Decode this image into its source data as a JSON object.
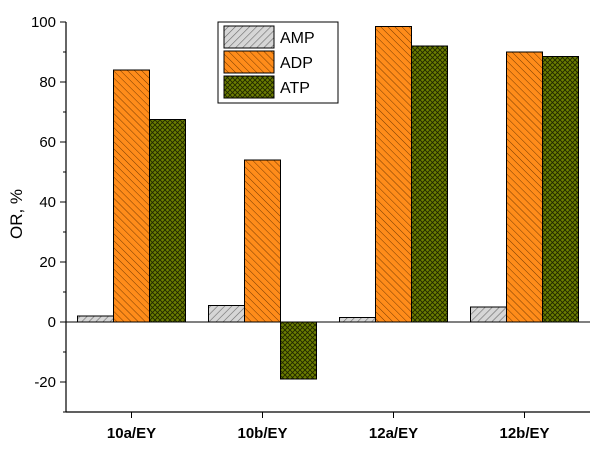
{
  "chart_data": {
    "type": "bar",
    "categories": [
      "10a/EY",
      "10b/EY",
      "12a/EY",
      "12b/EY"
    ],
    "series": [
      {
        "name": "AMP",
        "values": [
          2,
          5.5,
          1.5,
          5
        ],
        "color": "#c8c8c8"
      },
      {
        "name": "ADP",
        "values": [
          84,
          54,
          98.5,
          90
        ],
        "color": "#ff8c1a"
      },
      {
        "name": "ATP",
        "values": [
          67.5,
          -19,
          92,
          88.5
        ],
        "color": "#5a6b00"
      }
    ],
    "xlabel": "",
    "ylabel": "OR, %",
    "ylim": [
      -30,
      100
    ],
    "yticks": [
      -20,
      0,
      20,
      40,
      60,
      80,
      100
    ],
    "grid": false,
    "legend_position": "top-center"
  }
}
